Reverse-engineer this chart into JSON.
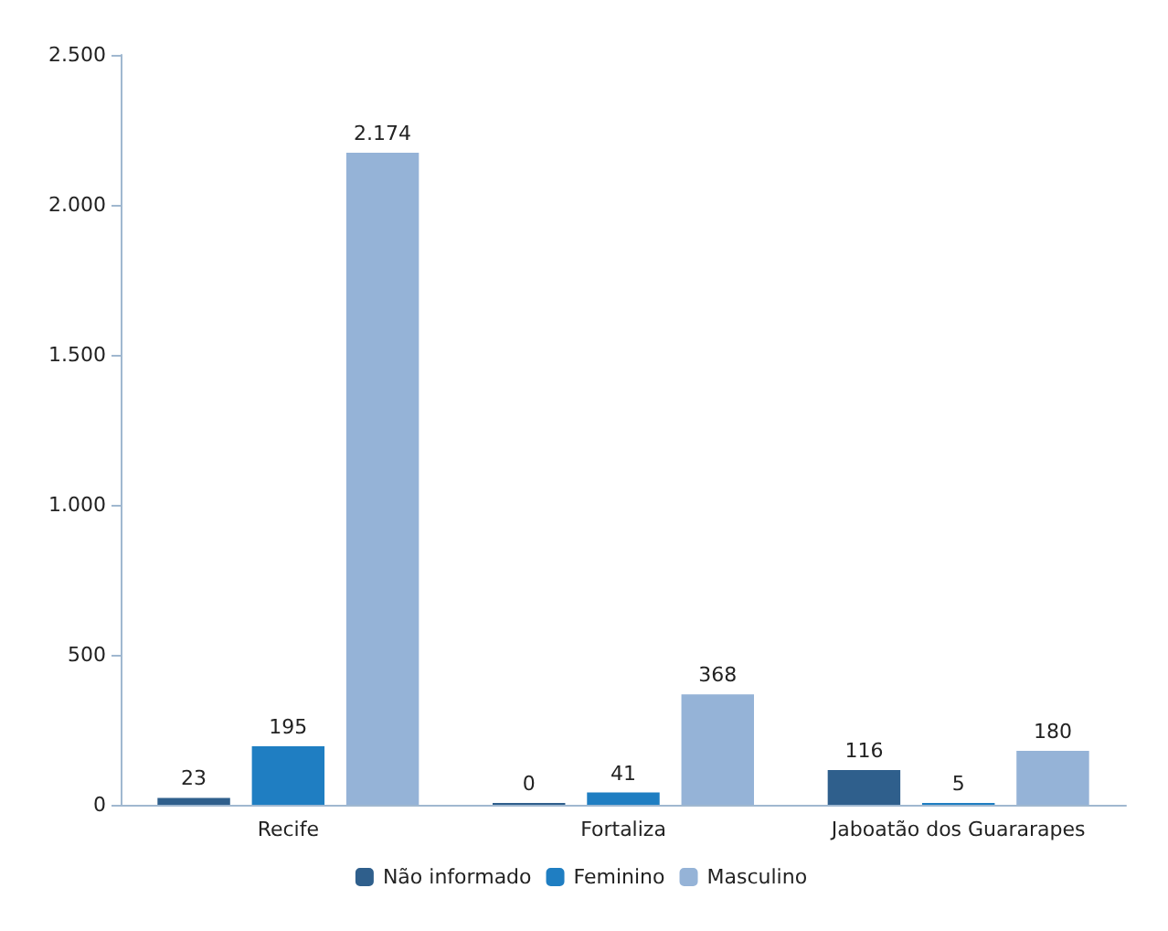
{
  "chart_data": {
    "type": "bar",
    "categories": [
      "Recife",
      "Fortaliza",
      "Jaboatão dos Guararapes"
    ],
    "series": [
      {
        "name": "Não informado",
        "color": "#2f5f8c",
        "values": [
          23,
          0,
          116
        ],
        "value_labels": [
          "23",
          "0",
          "116"
        ]
      },
      {
        "name": "Feminino",
        "color": "#1f7ec2",
        "values": [
          195,
          41,
          5
        ],
        "value_labels": [
          "195",
          "41",
          "5"
        ]
      },
      {
        "name": "Masculino",
        "color": "#95b3d7",
        "values": [
          2174,
          368,
          180
        ],
        "value_labels": [
          "2.174",
          "368",
          "180"
        ]
      }
    ],
    "ylim": [
      0,
      2500
    ],
    "yticks": [
      {
        "value": 0,
        "label": "0"
      },
      {
        "value": 500,
        "label": "500"
      },
      {
        "value": 1000,
        "label": "1.000"
      },
      {
        "value": 1500,
        "label": "1.500"
      },
      {
        "value": 2000,
        "label": "2.000"
      },
      {
        "value": 2500,
        "label": "2.500"
      }
    ],
    "grid": false,
    "legend": "bottom"
  }
}
